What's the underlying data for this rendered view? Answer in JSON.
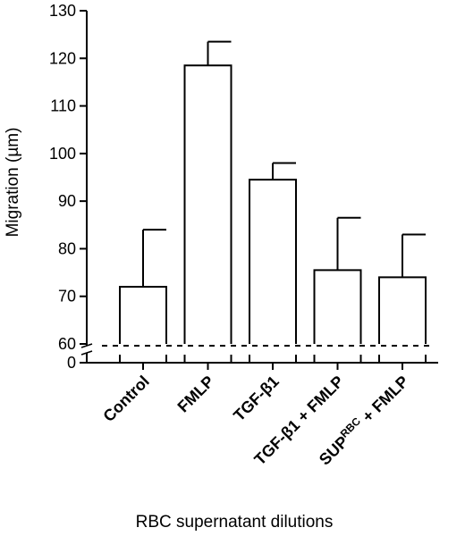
{
  "chart_data": {
    "type": "bar",
    "title": "",
    "xlabel": "RBC supernatant dilutions",
    "ylabel": "Migration (µm)",
    "categories": [
      {
        "label": "Control",
        "sup": ""
      },
      {
        "label": "FMLP",
        "sup": ""
      },
      {
        "label": "TGF-β1",
        "sup": ""
      },
      {
        "label": "TGF-β1 + FMLP",
        "sup": ""
      },
      {
        "label": "SUP",
        "sup": "RBC",
        "suffix": " + FMLP"
      }
    ],
    "values": [
      72,
      118.5,
      94.5,
      75.5,
      74
    ],
    "errors": [
      12,
      5,
      3.5,
      11,
      9
    ],
    "yticks": [
      "0",
      "60",
      "70",
      "80",
      "90",
      "100",
      "110",
      "120",
      "130"
    ],
    "ylim": [
      60,
      130
    ],
    "axis_break": true,
    "grid": false,
    "legend": "none",
    "bar_fill": "#ffffff",
    "bar_stroke": "#000000"
  }
}
